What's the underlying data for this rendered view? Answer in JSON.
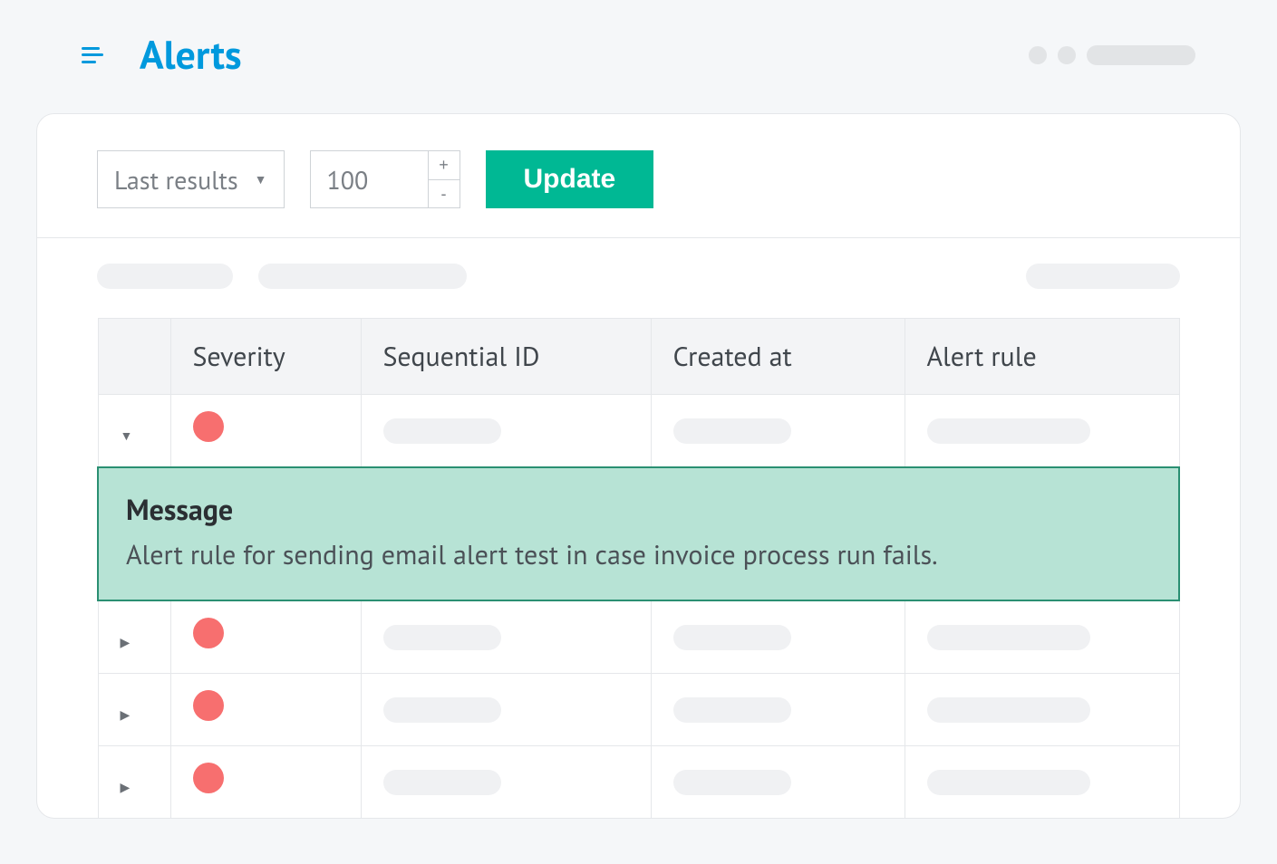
{
  "header": {
    "title": "Alerts"
  },
  "controls": {
    "select_label": "Last results",
    "stepper_value": "100",
    "update_label": "Update"
  },
  "table": {
    "columns": [
      "Severity",
      "Sequential ID",
      "Created at",
      "Alert rule"
    ],
    "rows": [
      {
        "expanded": true,
        "severity_color": "#f76f6f"
      },
      {
        "expanded": false,
        "severity_color": "#f76f6f"
      },
      {
        "expanded": false,
        "severity_color": "#f76f6f"
      },
      {
        "expanded": false,
        "severity_color": "#f76f6f"
      }
    ],
    "message": {
      "label": "Message",
      "text": "Alert rule for sending email alert test in case invoice process run fails."
    }
  },
  "colors": {
    "primary": "#0099dd",
    "accent": "#00b894",
    "message_bg": "#b7e3d5",
    "message_border": "#2a8f72",
    "placeholder": "#f0f1f3",
    "border": "#e5e7ea",
    "text": "#40464c",
    "muted": "#7a7f85"
  }
}
